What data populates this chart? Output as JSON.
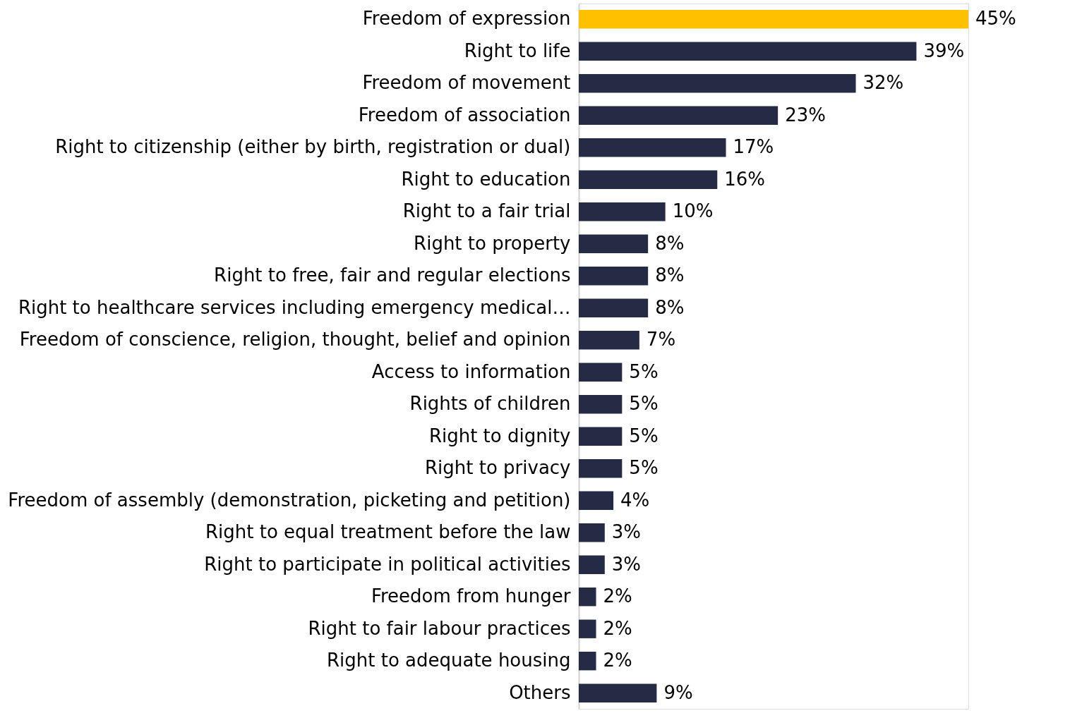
{
  "chart_data": {
    "type": "bar",
    "orientation": "horizontal",
    "categories": [
      "Freedom of expression",
      "Right to life",
      "Freedom of movement",
      "Freedom of association",
      "Right to citizenship (either by birth, registration or dual)",
      "Right to education",
      "Right to a fair trial",
      "Right to property",
      "Right to free, fair and regular elections",
      "Right to healthcare services including emergency medical…",
      "Freedom of conscience, religion, thought, belief and opinion",
      "Access to information",
      "Rights of children",
      "Right to dignity",
      "Right to privacy",
      "Freedom of assembly (demonstration, picketing and petition)",
      "Right to equal treatment before the law",
      "Right to participate in political activities",
      "Freedom from hunger",
      "Right to fair labour practices",
      "Right to adequate housing",
      "Others"
    ],
    "values": [
      45,
      39,
      32,
      23,
      17,
      16,
      10,
      8,
      8,
      8,
      7,
      5,
      5,
      5,
      5,
      4,
      3,
      3,
      2,
      2,
      2,
      9
    ],
    "value_labels": [
      "45%",
      "39%",
      "32%",
      "23%",
      "17%",
      "16%",
      "10%",
      "8%",
      "8%",
      "8%",
      "7%",
      "5%",
      "5%",
      "5%",
      "5%",
      "4%",
      "3%",
      "3%",
      "2%",
      "2%",
      "2%",
      "9%"
    ],
    "colors": [
      "#ffc000",
      "#252a45",
      "#252a45",
      "#252a45",
      "#252a45",
      "#252a45",
      "#252a45",
      "#252a45",
      "#252a45",
      "#252a45",
      "#252a45",
      "#252a45",
      "#252a45",
      "#252a45",
      "#252a45",
      "#252a45",
      "#252a45",
      "#252a45",
      "#252a45",
      "#252a45",
      "#252a45",
      "#252a45"
    ],
    "tick_labels": "y",
    "grid": false
  }
}
